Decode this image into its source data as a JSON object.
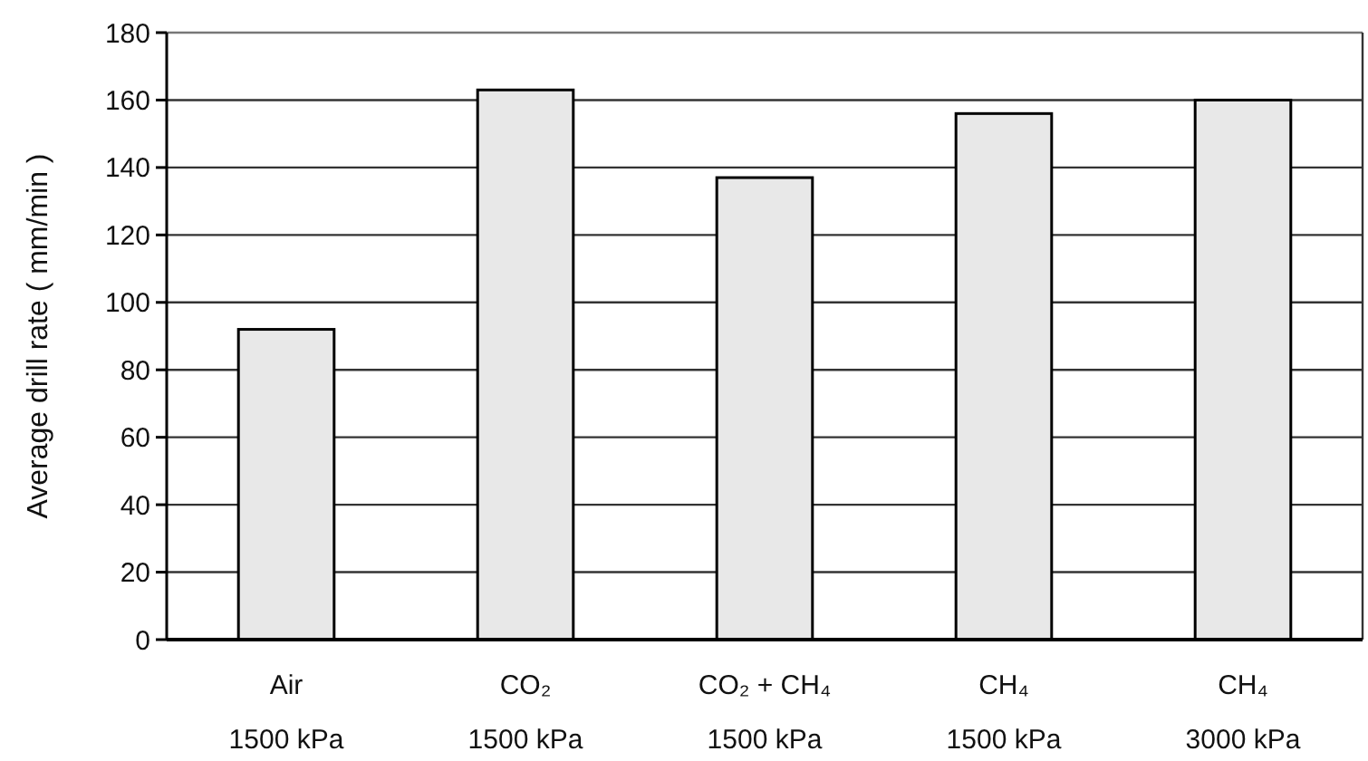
{
  "chart_data": {
    "type": "bar",
    "ylabel": "Average drill rate ( mm/min )",
    "categories": [
      "Air\n1500 kPa",
      "CO₂\n1500 kPa",
      "CO₂ + CH₄\n1500 kPa",
      "CH₄\n1500 kPa",
      "CH₄\n3000 kPa"
    ],
    "values": [
      92,
      163,
      137,
      156,
      160
    ],
    "color": "#e8e8e8",
    "ylim": [
      0,
      180
    ],
    "yticks": [
      0,
      20,
      40,
      60,
      80,
      100,
      120,
      140,
      160,
      180
    ],
    "grid": "y"
  }
}
